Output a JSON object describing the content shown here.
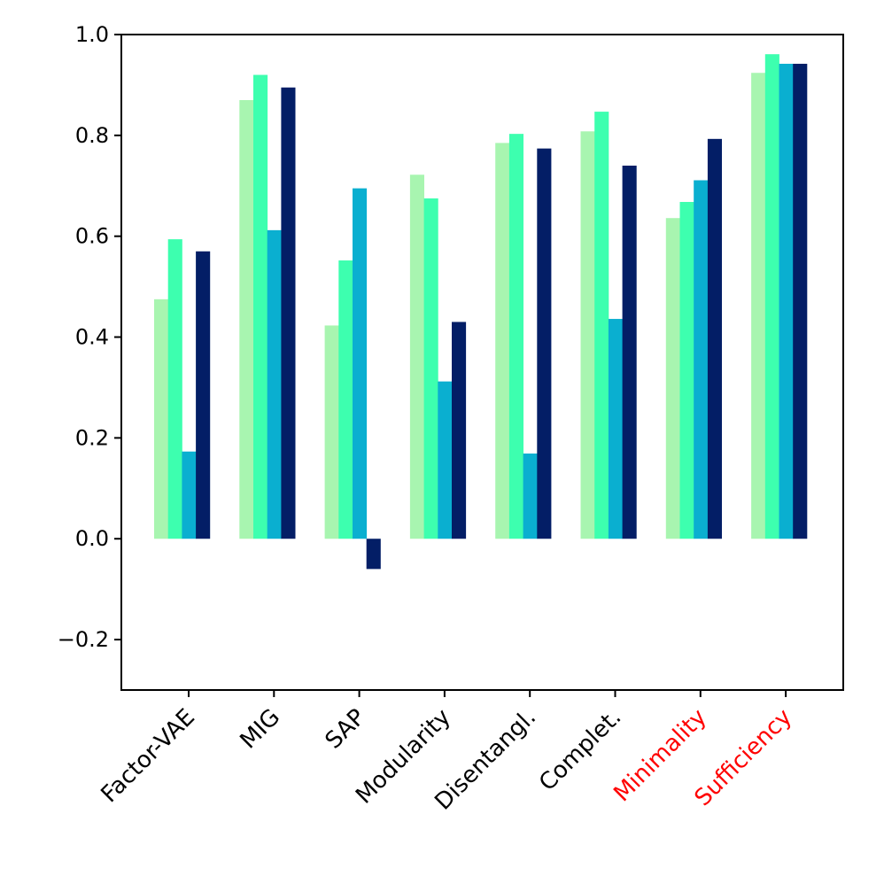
{
  "chart_data": {
    "type": "bar",
    "title": "",
    "xlabel": "",
    "ylabel": "",
    "ylim": [
      -0.3,
      1.0
    ],
    "yticks": [
      -0.2,
      0.0,
      0.2,
      0.4,
      0.6,
      0.8,
      1.0
    ],
    "ytick_labels": [
      "−0.2",
      "0.0",
      "0.2",
      "0.4",
      "0.6",
      "0.8",
      "1.0"
    ],
    "grid": false,
    "legend": "none",
    "categories": [
      "Factor-VAE",
      "MIG",
      "SAP",
      "Modularity",
      "Disentangl.",
      "Complet.",
      "Minimality",
      "Sufficiency"
    ],
    "category_colors": [
      "#000000",
      "#000000",
      "#000000",
      "#000000",
      "#000000",
      "#000000",
      "#ff0000",
      "#ff0000"
    ],
    "series": [
      {
        "name": "series-1",
        "color": "#a8f5b0",
        "values": [
          0.475,
          0.87,
          0.423,
          0.722,
          0.785,
          0.808,
          0.636,
          0.924
        ]
      },
      {
        "name": "series-2",
        "color": "#3dffaf",
        "values": [
          0.594,
          0.92,
          0.552,
          0.675,
          0.803,
          0.847,
          0.668,
          0.961
        ]
      },
      {
        "name": "series-3",
        "color": "#0aafd0",
        "values": [
          0.173,
          0.612,
          0.695,
          0.312,
          0.169,
          0.436,
          0.711,
          0.942
        ]
      },
      {
        "name": "series-4",
        "color": "#031e66",
        "values": [
          0.57,
          0.895,
          -0.06,
          0.43,
          0.774,
          0.74,
          0.793,
          0.942
        ]
      }
    ]
  }
}
